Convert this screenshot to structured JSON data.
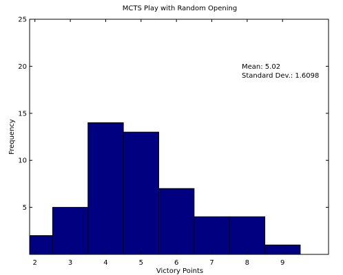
{
  "chart_data": {
    "type": "bar",
    "title": "MCTS Play with Random Opening",
    "xlabel": "Victory Points",
    "ylabel": "Frequency",
    "categories": [
      2,
      3,
      4,
      5,
      6,
      7,
      8,
      9
    ],
    "values": [
      2,
      5,
      14,
      13,
      7,
      4,
      4,
      1
    ],
    "bar_edges": [
      1.85,
      2.5,
      3.5,
      4.5,
      5.5,
      6.5,
      7.5,
      8.5,
      9.5
    ],
    "xlim": [
      1.85,
      10.3
    ],
    "ylim": [
      0,
      25
    ],
    "yticks": [
      5,
      10,
      15,
      20,
      25
    ],
    "xticks": [
      2,
      3,
      4,
      5,
      6,
      7,
      8,
      9
    ],
    "annotations": [
      "Mean: 5.02",
      "Standard Dev.: 1.6098"
    ],
    "bar_color": "#000080",
    "bar_edge_color": "#000000",
    "grid": false,
    "legend": "none"
  }
}
